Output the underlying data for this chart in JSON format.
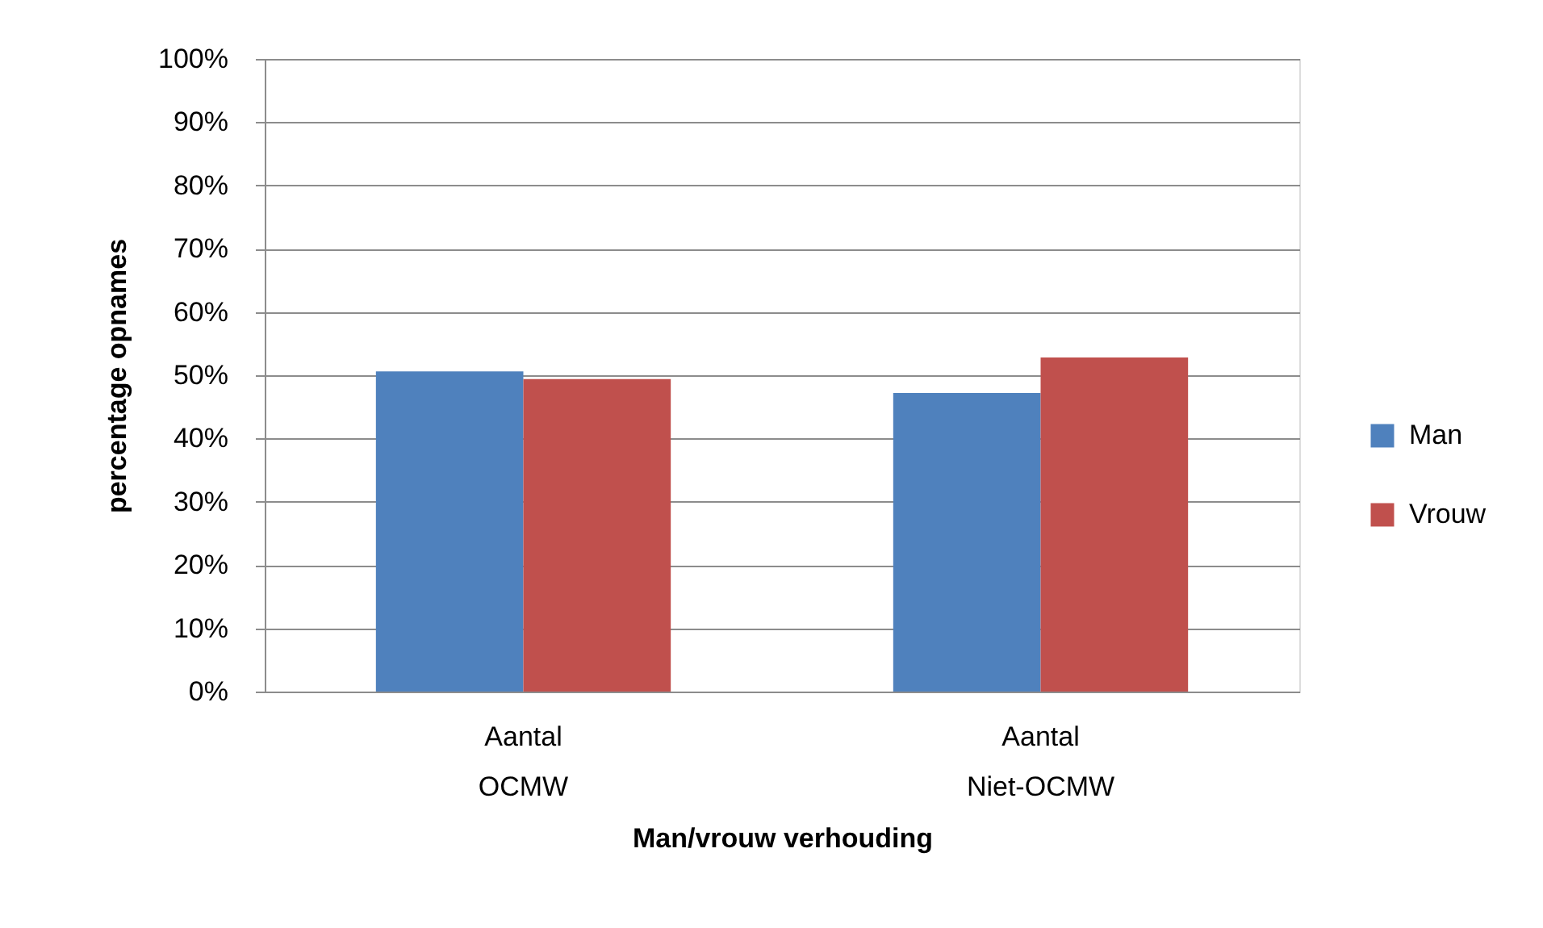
{
  "chart_data": {
    "type": "bar",
    "xlabel": "Man/vrouw verhouding",
    "ylabel": "percentage opnames",
    "categories": [
      "Aantal OCMW",
      "Aantal Niet-OCMW"
    ],
    "series": [
      {
        "name": "Man",
        "color": "#4f81bd",
        "values": [
          50.6,
          47.2
        ]
      },
      {
        "name": "Vrouw",
        "color": "#c0504d",
        "values": [
          49.4,
          52.8
        ]
      }
    ],
    "ylim": [
      0,
      100
    ],
    "yticks": [
      {
        "value": 0,
        "label": "0%"
      },
      {
        "value": 10,
        "label": "10%"
      },
      {
        "value": 20,
        "label": "20%"
      },
      {
        "value": 30,
        "label": "30%"
      },
      {
        "value": 40,
        "label": "40%"
      },
      {
        "value": 50,
        "label": "50%"
      },
      {
        "value": 60,
        "label": "60%"
      },
      {
        "value": 70,
        "label": "70%"
      },
      {
        "value": 80,
        "label": "80%"
      },
      {
        "value": 90,
        "label": "90%"
      },
      {
        "value": 100,
        "label": "100%"
      }
    ],
    "grid": "y",
    "legend": "right"
  }
}
